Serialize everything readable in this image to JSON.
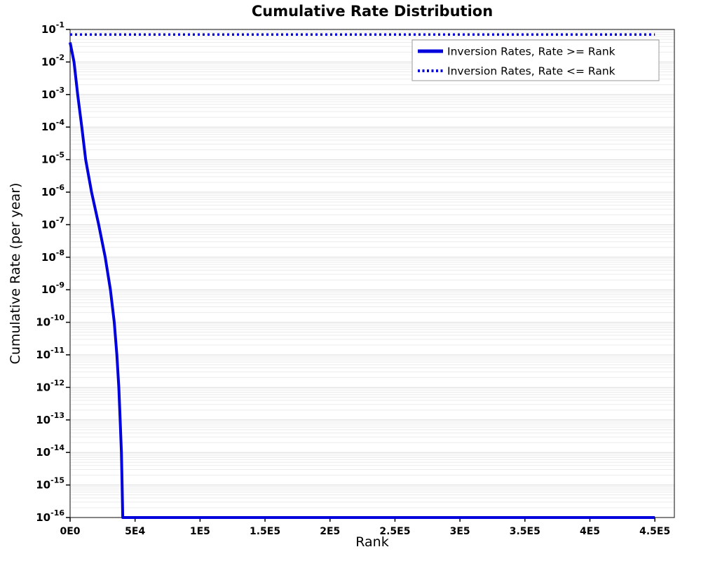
{
  "chart_data": {
    "type": "line",
    "title": "Cumulative Rate Distribution",
    "xlabel": "Rank",
    "ylabel": "Cumulative Rate (per year)",
    "xlim": [
      0,
      465000
    ],
    "ylim": [
      1e-16,
      0.1
    ],
    "y_scale": "log",
    "grid": true,
    "legend_position": "top-right",
    "line_color": "#0000dd",
    "x_ticks": [
      {
        "value": 0,
        "label": "0E0"
      },
      {
        "value": 50000,
        "label": "5E4"
      },
      {
        "value": 100000,
        "label": "1E5"
      },
      {
        "value": 150000,
        "label": "1.5E5"
      },
      {
        "value": 200000,
        "label": "2E5"
      },
      {
        "value": 250000,
        "label": "2.5E5"
      },
      {
        "value": 300000,
        "label": "3E5"
      },
      {
        "value": 350000,
        "label": "3.5E5"
      },
      {
        "value": 400000,
        "label": "4E5"
      },
      {
        "value": 450000,
        "label": "4.5E5"
      }
    ],
    "y_tick_exponents": [
      -1,
      -2,
      -3,
      -4,
      -5,
      -6,
      -7,
      -8,
      -9,
      -10,
      -11,
      -12,
      -13,
      -14,
      -15,
      -16
    ],
    "series": [
      {
        "name": "Inversion Rates, Rate >= Rank",
        "style": "solid",
        "points": [
          [
            0,
            0.04
          ],
          [
            3000,
            0.01
          ],
          [
            5800,
            0.001
          ],
          [
            9000,
            0.0001
          ],
          [
            12000,
            1e-05
          ],
          [
            16500,
            1e-06
          ],
          [
            22000,
            1e-07
          ],
          [
            27000,
            1e-08
          ],
          [
            31000,
            1e-09
          ],
          [
            34000,
            1e-10
          ],
          [
            36000,
            1e-11
          ],
          [
            37500,
            1e-12
          ],
          [
            38500,
            1e-13
          ],
          [
            39500,
            1e-14
          ],
          [
            40000,
            1e-15
          ],
          [
            40500,
            1e-16
          ],
          [
            450000,
            1e-16
          ]
        ]
      },
      {
        "name": "Inversion Rates, Rate <= Rank",
        "style": "dotted",
        "points": [
          [
            0,
            0.07
          ],
          [
            450000,
            0.07
          ]
        ]
      }
    ]
  }
}
